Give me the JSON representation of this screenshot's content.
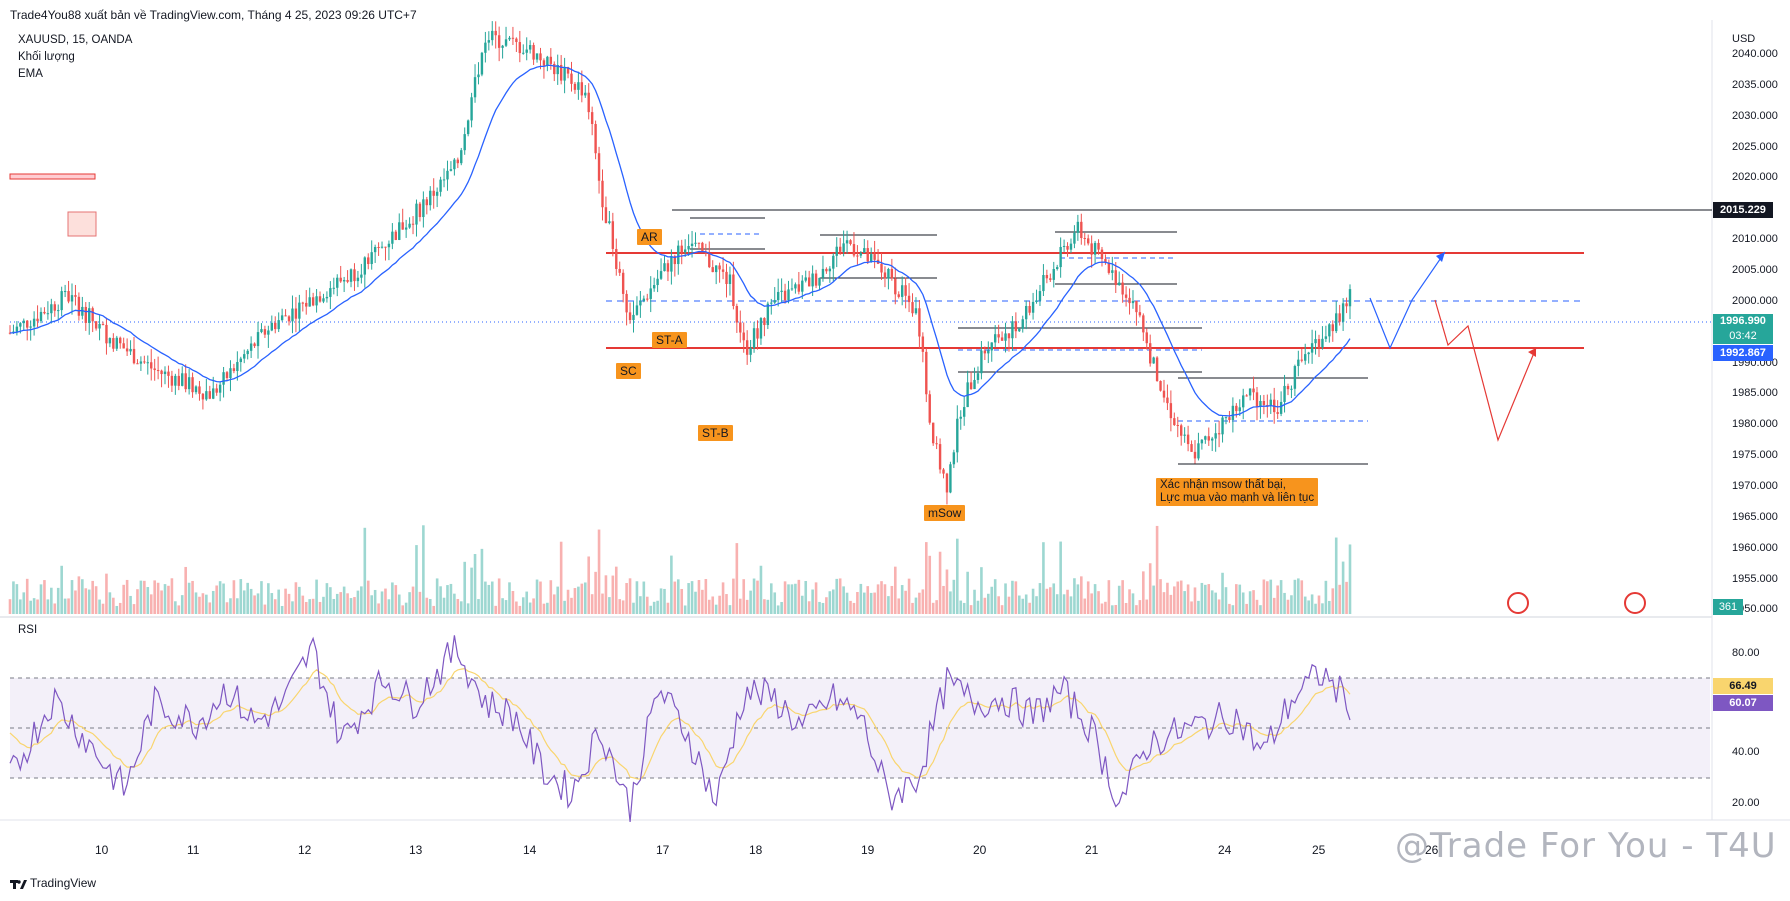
{
  "header": {
    "title": "Trade4You88 xuất bản về TradingView.com, Tháng 4 25, 2023 09:26 UTC+7"
  },
  "legend": {
    "symbol": "XAUUSD, 15, OANDA",
    "volume": "Khối lượng",
    "ema": "EMA"
  },
  "price_axis": {
    "currency": "USD",
    "ticks": [
      "2040.000",
      "2035.000",
      "2030.000",
      "2025.000",
      "2020.000",
      "2010.000",
      "2005.000",
      "2000.000",
      "1990.000",
      "1985.000",
      "1980.000",
      "1975.000",
      "1970.000",
      "1965.000",
      "1960.000",
      "1955.000",
      "1950.000"
    ],
    "tag_high": "2015.229",
    "tag_current": "1996.990",
    "tag_countdown": "03:42",
    "tag_support": "1992.867",
    "volume_value": "361"
  },
  "rsi": {
    "label": "RSI",
    "ticks": [
      "80.00",
      "40.00",
      "20.00"
    ],
    "value1": "66.49",
    "value2": "60.07"
  },
  "annotations": {
    "ar": "AR",
    "st_a": "ST-A",
    "sc": "SC",
    "st_b": "ST-B",
    "msow": "mSow",
    "note_line1": "Xác nhận msow thất bại,",
    "note_line2": "Lực mua vào mạnh và liên tục"
  },
  "dates": [
    "10",
    "11",
    "12",
    "13",
    "14",
    "17",
    "18",
    "19",
    "20",
    "21",
    "24",
    "25",
    "26"
  ],
  "footer": {
    "brand": "TradingView",
    "watermark": "@Trade For You - T4U"
  },
  "colors": {
    "up": "#26a69a",
    "down": "#ef5350",
    "ema": "#2962ff",
    "rsi": "#7e57c2",
    "rsi_ma": "#f9d56e",
    "resistance": "#e53935",
    "annotation": "#f7941d"
  },
  "chart_data": {
    "type": "candlestick",
    "symbol": "XAUUSD",
    "timeframe": "15",
    "ylim": [
      1950,
      2042
    ],
    "key_levels": {
      "high_line": 2015.229,
      "resistance": 2008,
      "dashed_mid": 2000.5,
      "support": 1992.867,
      "current": 1996.99
    },
    "path_points": [
      [
        0,
        1995
      ],
      [
        4,
        2001
      ],
      [
        7,
        1994
      ],
      [
        10,
        1989
      ],
      [
        14,
        1985
      ],
      [
        18,
        1996
      ],
      [
        24,
        2005
      ],
      [
        28,
        2014
      ],
      [
        31,
        2022
      ],
      [
        33,
        2043
      ],
      [
        36,
        2041
      ],
      [
        40,
        2034
      ],
      [
        41,
        2018
      ],
      [
        43,
        1997
      ],
      [
        45,
        2004
      ],
      [
        47,
        2010
      ],
      [
        50,
        2003
      ],
      [
        51,
        1992
      ],
      [
        53,
        2000
      ],
      [
        56,
        2004
      ],
      [
        58,
        2010
      ],
      [
        61,
        2004
      ],
      [
        63,
        1998
      ],
      [
        64,
        1978
      ],
      [
        65,
        1970
      ],
      [
        66,
        1983
      ],
      [
        68,
        1994
      ],
      [
        70,
        1996
      ],
      [
        72,
        2004
      ],
      [
        74,
        2012
      ],
      [
        76,
        2006
      ],
      [
        78,
        2000
      ],
      [
        80,
        1985
      ],
      [
        82,
        1975
      ],
      [
        84,
        1980
      ],
      [
        86,
        1985
      ],
      [
        88,
        1983
      ],
      [
        90,
        1992
      ],
      [
        92,
        1997
      ],
      [
        93,
        2001
      ]
    ],
    "rsi_points": [
      [
        0,
        30
      ],
      [
        3,
        62
      ],
      [
        6,
        40
      ],
      [
        8,
        25
      ],
      [
        10,
        60
      ],
      [
        13,
        52
      ],
      [
        15,
        66
      ],
      [
        17,
        52
      ],
      [
        19,
        60
      ],
      [
        21,
        82
      ],
      [
        23,
        45
      ],
      [
        26,
        70
      ],
      [
        28,
        60
      ],
      [
        31,
        82
      ],
      [
        33,
        60
      ],
      [
        35,
        55
      ],
      [
        37,
        33
      ],
      [
        39,
        24
      ],
      [
        41,
        50
      ],
      [
        43,
        18
      ],
      [
        45,
        66
      ],
      [
        47,
        48
      ],
      [
        49,
        20
      ],
      [
        51,
        65
      ],
      [
        53,
        62
      ],
      [
        55,
        50
      ],
      [
        57,
        62
      ],
      [
        59,
        55
      ],
      [
        61,
        22
      ],
      [
        63,
        30
      ],
      [
        65,
        68
      ],
      [
        67,
        60
      ],
      [
        69,
        62
      ],
      [
        71,
        55
      ],
      [
        73,
        65
      ],
      [
        75,
        50
      ],
      [
        77,
        20
      ],
      [
        79,
        44
      ],
      [
        81,
        48
      ],
      [
        83,
        52
      ],
      [
        85,
        55
      ],
      [
        87,
        40
      ],
      [
        89,
        62
      ],
      [
        91,
        72
      ],
      [
        93,
        60
      ]
    ]
  }
}
